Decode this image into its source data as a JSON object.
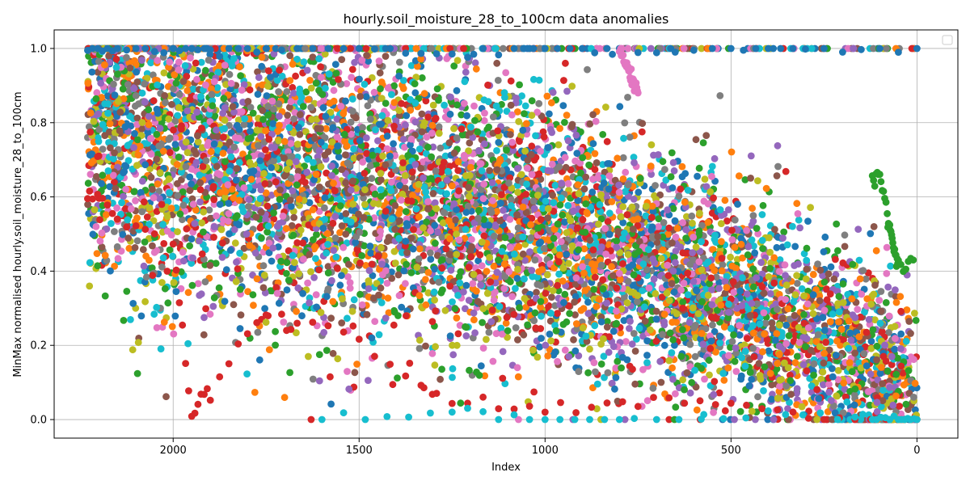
{
  "chart_data": {
    "type": "scatter",
    "title": "hourly.soil_moisture_28_to_100cm data anomalies",
    "xlabel": "Index",
    "ylabel": "MinMax normalised hourly.soil_moisture_28_to_100cm",
    "xlim": [
      2320,
      -110
    ],
    "ylim": [
      -0.05,
      1.05
    ],
    "x_inverted": true,
    "x_ticks": [
      2000,
      1500,
      1000,
      500,
      0
    ],
    "x_tick_labels": [
      "2000",
      "1500",
      "1000",
      "500",
      "0"
    ],
    "y_ticks": [
      0.0,
      0.2,
      0.4,
      0.6,
      0.8,
      1.0
    ],
    "y_tick_labels": [
      "0.0",
      "0.2",
      "0.4",
      "0.6",
      "0.8",
      "1.0"
    ],
    "grid": true,
    "legend": "top-right",
    "palette": [
      "#1f77b4",
      "#ff7f0e",
      "#2ca02c",
      "#d62728",
      "#9467bd",
      "#8c564b",
      "#e377c2",
      "#7f7f7f",
      "#bcbd22",
      "#17becf"
    ],
    "point_count": 8000,
    "trend": {
      "x": [
        2230,
        2000,
        1750,
        1500,
        1250,
        1000,
        750,
        500,
        250,
        0
      ],
      "y": [
        0.86,
        0.76,
        0.7,
        0.64,
        0.58,
        0.5,
        0.42,
        0.33,
        0.22,
        0.08
      ]
    },
    "spread": 0.2,
    "series": [
      {
        "values": [
          [
            2230,
            1.0
          ],
          [
            2150,
            1.0
          ],
          [
            2000,
            1.0
          ],
          [
            1900,
            1.0
          ],
          [
            1750,
            1.0
          ],
          [
            1500,
            1.0
          ],
          [
            1250,
            1.0
          ],
          [
            1000,
            1.0
          ],
          [
            800,
            1.0
          ],
          [
            500,
            1.0
          ],
          [
            300,
            1.0
          ],
          [
            0,
            1.0
          ]
        ]
      },
      {
        "values": [
          [
            2230,
            0.6
          ],
          [
            2150,
            0.55
          ],
          [
            2000,
            0.48
          ],
          [
            1950,
            0.01
          ],
          [
            1900,
            0.08
          ],
          [
            1750,
            0.3
          ],
          [
            1500,
            0.2
          ],
          [
            1250,
            0.05
          ],
          [
            1000,
            0.02
          ],
          [
            750,
            0.05
          ],
          [
            500,
            0.05
          ],
          [
            250,
            0.0
          ],
          [
            0,
            0.0
          ]
        ]
      },
      {
        "values": [
          [
            800,
            1.0
          ],
          [
            790,
            0.97
          ],
          [
            780,
            0.95
          ],
          [
            770,
            0.93
          ],
          [
            760,
            0.9
          ],
          [
            750,
            0.88
          ]
        ]
      },
      {
        "values": [
          [
            1600,
            0.0
          ],
          [
            1250,
            0.02
          ],
          [
            1000,
            0.0
          ],
          [
            760,
            0.0
          ],
          [
            400,
            0.0
          ],
          [
            120,
            0.0
          ],
          [
            50,
            0.0
          ],
          [
            0,
            0.0
          ]
        ]
      },
      {
        "values": [
          [
            120,
            0.65
          ],
          [
            100,
            0.66
          ],
          [
            80,
            0.55
          ],
          [
            70,
            0.5
          ],
          [
            60,
            0.45
          ],
          [
            50,
            0.42
          ],
          [
            10,
            0.43
          ]
        ]
      }
    ]
  }
}
